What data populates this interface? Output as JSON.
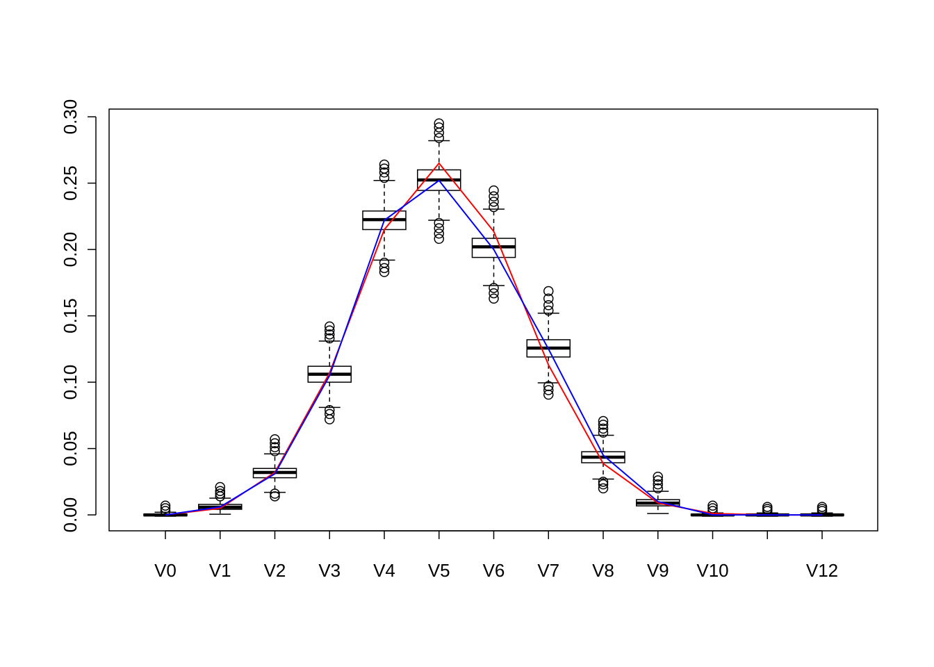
{
  "chart_data": {
    "type": "boxplot",
    "categories": [
      "V0",
      "V1",
      "V2",
      "V3",
      "V4",
      "V5",
      "V6",
      "V7",
      "V8",
      "V9",
      "V10",
      null,
      "V12"
    ],
    "ylim": [
      -0.012,
      0.3058
    ],
    "yticks": [
      {
        "value": 0,
        "label": "0.00"
      },
      {
        "value": 0.05,
        "label": "0.05"
      },
      {
        "value": 0.1,
        "label": "0.10"
      },
      {
        "value": 0.15,
        "label": "0.15"
      },
      {
        "value": 0.2,
        "label": "0.20"
      },
      {
        "value": 0.25,
        "label": "0.25"
      },
      {
        "value": 0.3,
        "label": "0.30"
      }
    ],
    "boxes": [
      {
        "whislo": -0.001,
        "q1": -0.0007,
        "med": 0,
        "q3": 0.0007,
        "whishi": 0.002,
        "outliers": [
          0.003,
          0.005,
          0.007
        ]
      },
      {
        "whislo": 0.0005,
        "q1": 0.0042,
        "med": 0.0058,
        "q3": 0.0079,
        "whishi": 0.0126,
        "outliers": [
          0.014,
          0.016,
          0.018,
          0.021
        ]
      },
      {
        "whislo": 0.017,
        "q1": 0.028,
        "med": 0.032,
        "q3": 0.035,
        "whishi": 0.046,
        "outliers": [
          0.014,
          0.016,
          0.048,
          0.051,
          0.054,
          0.057
        ]
      },
      {
        "whislo": 0.081,
        "q1": 0.1,
        "med": 0.106,
        "q3": 0.112,
        "whishi": 0.131,
        "outliers": [
          0.072,
          0.076,
          0.079,
          0.133,
          0.136,
          0.139,
          0.142
        ]
      },
      {
        "whislo": 0.192,
        "q1": 0.215,
        "med": 0.2225,
        "q3": 0.229,
        "whishi": 0.252,
        "outliers": [
          0.183,
          0.186,
          0.19,
          0.254,
          0.258,
          0.261,
          0.264
        ]
      },
      {
        "whislo": 0.222,
        "q1": 0.2445,
        "med": 0.2524,
        "q3": 0.26,
        "whishi": 0.282,
        "outliers": [
          0.208,
          0.212,
          0.216,
          0.22,
          0.284,
          0.288,
          0.292,
          0.295
        ]
      },
      {
        "whislo": 0.1728,
        "q1": 0.194,
        "med": 0.202,
        "q3": 0.2084,
        "whishi": 0.2304,
        "outliers": [
          0.163,
          0.167,
          0.171,
          0.232,
          0.236,
          0.24,
          0.2445
        ]
      },
      {
        "whislo": 0.0995,
        "q1": 0.119,
        "med": 0.1257,
        "q3": 0.132,
        "whishi": 0.152,
        "outliers": [
          0.0906,
          0.094,
          0.097,
          0.154,
          0.158,
          0.163,
          0.1686
        ]
      },
      {
        "whislo": 0.027,
        "q1": 0.0393,
        "med": 0.0435,
        "q3": 0.0476,
        "whishi": 0.06,
        "outliers": [
          0.02,
          0.023,
          0.025,
          0.062,
          0.065,
          0.068,
          0.0707
        ]
      },
      {
        "whislo": 0.001,
        "q1": 0.0068,
        "med": 0.0089,
        "q3": 0.0115,
        "whishi": 0.0178,
        "outliers": [
          0.02,
          0.023,
          0.026,
          0.0288
        ]
      },
      {
        "whislo": -0.001,
        "q1": -0.0005,
        "med": 0,
        "q3": 0.0005,
        "whishi": 0.0015,
        "outliers": [
          0.003,
          0.005,
          0.007
        ]
      },
      {
        "whislo": -0.001,
        "q1": -0.0005,
        "med": 0,
        "q3": 0.0005,
        "whishi": 0.0015,
        "outliers": [
          0.003,
          0.0045,
          0.006
        ]
      },
      {
        "whislo": -0.001,
        "q1": -0.0005,
        "med": 0,
        "q3": 0.0005,
        "whishi": 0.0015,
        "outliers": [
          0.003,
          0.0045,
          0.006
        ]
      }
    ],
    "series": [
      {
        "color": "#ff0000",
        "values": [
          0,
          0.005,
          0.032,
          0.107,
          0.215,
          0.265,
          0.2136,
          0.113,
          0.0387,
          0.009,
          0.001,
          0,
          0
        ]
      },
      {
        "color": "#0000ff",
        "values": [
          0,
          0.006,
          0.031,
          0.105,
          0.222,
          0.252,
          0.2,
          0.125,
          0.045,
          0.01,
          0,
          0,
          0
        ]
      }
    ]
  }
}
